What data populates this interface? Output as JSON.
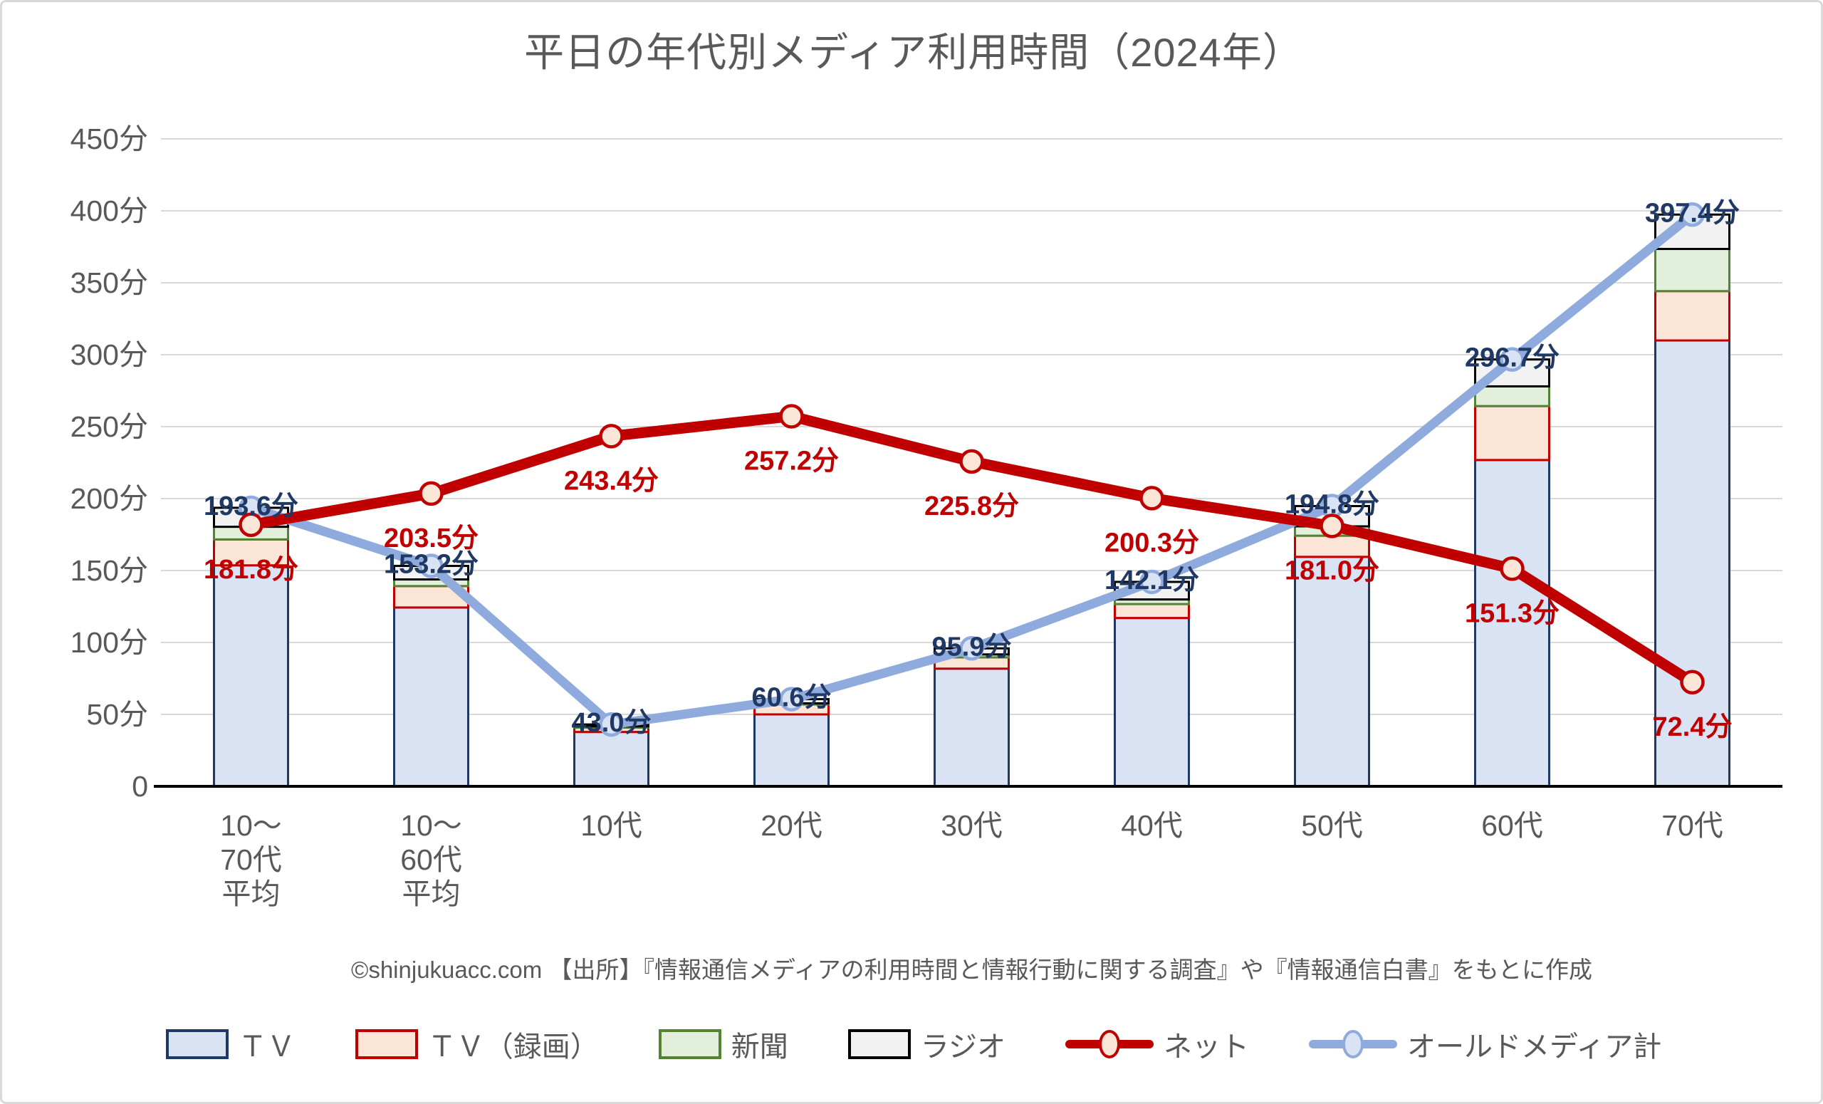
{
  "title": "平日の年代別メディア利用時間（2024年）",
  "source_note": "©shinjukuacc.com 【出所】『情報通信メディアの利用時間と情報行動に関する調査』や『情報通信白書』をもとに作成",
  "colors": {
    "text_gray": "#595959",
    "grid": "#d9d9d9",
    "axis": "#000000",
    "navy_label": "#1f3864",
    "red_label": "#c00000"
  },
  "chart_data": {
    "type": "bar+line",
    "title": "平日の年代別メディア利用時間（2024年）",
    "unit": "分",
    "ylim": [
      0,
      450
    ],
    "ytick_step": 50,
    "ytick_labels": [
      "0",
      "50分",
      "100分",
      "150分",
      "200分",
      "250分",
      "300分",
      "350分",
      "400分",
      "450分"
    ],
    "categories": [
      "10〜70代平均",
      "10〜60代平均",
      "10代",
      "20代",
      "30代",
      "40代",
      "50代",
      "60代",
      "70代"
    ],
    "category_display_lines": [
      [
        "10〜",
        "70代",
        "平均"
      ],
      [
        "10〜",
        "60代",
        "平均"
      ],
      [
        "10代"
      ],
      [
        "20代"
      ],
      [
        "30代"
      ],
      [
        "40代"
      ],
      [
        "50代"
      ],
      [
        "60代"
      ],
      [
        "70代"
      ]
    ],
    "grid": true,
    "legend_position": "bottom",
    "bar_series": [
      {
        "key": "tv",
        "name": "ＴＶ",
        "fill": "#dae3f3",
        "stroke": "#1f3864",
        "estimated": true,
        "values": [
          153.6,
          124.3,
          37.8,
          50.0,
          81.8,
          117.0,
          159.5,
          226.8,
          309.9
        ]
      },
      {
        "key": "tv-recorded",
        "name": "ＴＶ（録画）",
        "fill": "#fbe5d6",
        "stroke": "#c00000",
        "estimated": true,
        "values": [
          18.0,
          14.9,
          3.0,
          6.9,
          7.8,
          9.7,
          14.7,
          37.5,
          34.3
        ]
      },
      {
        "key": "newspaper",
        "name": "新聞",
        "fill": "#e2efda",
        "stroke": "#548235",
        "estimated": true,
        "values": [
          8.8,
          4.6,
          0.9,
          0.8,
          2.1,
          3.2,
          6.5,
          13.7,
          29.3
        ]
      },
      {
        "key": "radio",
        "name": "ラジオ",
        "fill": "#f2f2f2",
        "stroke": "#000000",
        "estimated": true,
        "values": [
          13.2,
          9.4,
          1.3,
          2.9,
          4.2,
          12.2,
          14.1,
          18.7,
          23.9
        ]
      }
    ],
    "line_series": [
      {
        "key": "net",
        "name": "ネット",
        "color": "#c00000",
        "marker_fill": "#fbe5d6",
        "label_color": "#c00000",
        "label_position": "below",
        "values": [
          181.8,
          203.5,
          243.4,
          257.2,
          225.8,
          200.3,
          181.0,
          151.3,
          72.4
        ],
        "labels": [
          "181.8分",
          "203.5分",
          "243.4分",
          "257.2分",
          "225.8分",
          "200.3分",
          "181.0分",
          "151.3分",
          "72.4分"
        ]
      },
      {
        "key": "old-media-total",
        "name": "オールドメディア計",
        "color": "#8faadc",
        "marker_fill": "#dae3f3",
        "label_color": "#1f3864",
        "label_position": "center",
        "values": [
          193.6,
          153.2,
          43.0,
          60.6,
          95.9,
          142.1,
          194.8,
          296.7,
          397.4
        ],
        "labels": [
          "193.6分",
          "153.2分",
          "43.0分",
          "60.6分",
          "95.9分",
          "142.1分",
          "194.8分",
          "296.7分",
          "397.4分"
        ]
      }
    ]
  }
}
